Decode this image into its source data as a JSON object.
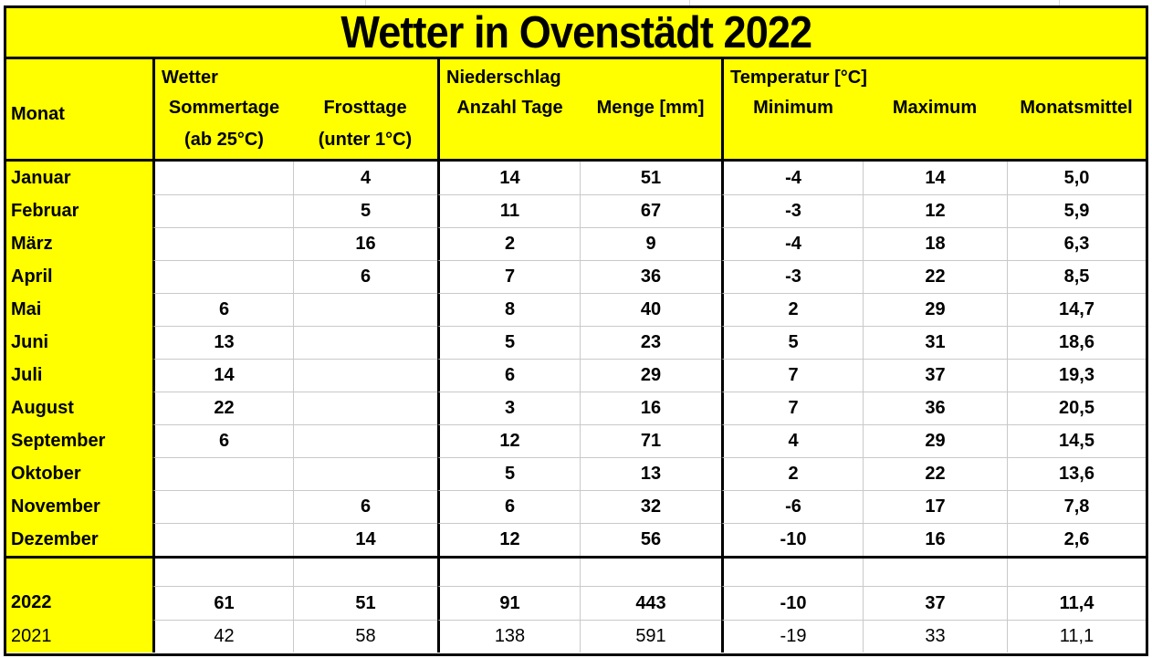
{
  "title": "Wetter in Ovenstädt 2022",
  "table": {
    "monat_header": "Monat",
    "groups": [
      {
        "label": "Wetter",
        "columns": [
          {
            "label": "Sommertage",
            "sub": "(ab 25°C)"
          },
          {
            "label": "Frosttage",
            "sub": "(unter 1°C)"
          }
        ]
      },
      {
        "label": "Niederschlag",
        "columns": [
          {
            "label": "Anzahl Tage",
            "sub": ""
          },
          {
            "label": "Menge [mm]",
            "sub": ""
          }
        ]
      },
      {
        "label": "Temperatur [°C]",
        "columns": [
          {
            "label": "Minimum",
            "sub": ""
          },
          {
            "label": "Maximum",
            "sub": ""
          },
          {
            "label": "Monatsmittel",
            "sub": ""
          }
        ]
      }
    ],
    "rows": [
      {
        "monat": "Januar",
        "sommertage": "",
        "frosttage": "4",
        "anzahl_tage": "14",
        "menge": "51",
        "minimum": "-4",
        "maximum": "14",
        "monatsmittel": "5,0"
      },
      {
        "monat": "Februar",
        "sommertage": "",
        "frosttage": "5",
        "anzahl_tage": "11",
        "menge": "67",
        "minimum": "-3",
        "maximum": "12",
        "monatsmittel": "5,9"
      },
      {
        "monat": "März",
        "sommertage": "",
        "frosttage": "16",
        "anzahl_tage": "2",
        "menge": "9",
        "minimum": "-4",
        "maximum": "18",
        "monatsmittel": "6,3"
      },
      {
        "monat": "April",
        "sommertage": "",
        "frosttage": "6",
        "anzahl_tage": "7",
        "menge": "36",
        "minimum": "-3",
        "maximum": "22",
        "monatsmittel": "8,5"
      },
      {
        "monat": "Mai",
        "sommertage": "6",
        "frosttage": "",
        "anzahl_tage": "8",
        "menge": "40",
        "minimum": "2",
        "maximum": "29",
        "monatsmittel": "14,7"
      },
      {
        "monat": "Juni",
        "sommertage": "13",
        "frosttage": "",
        "anzahl_tage": "5",
        "menge": "23",
        "minimum": "5",
        "maximum": "31",
        "monatsmittel": "18,6"
      },
      {
        "monat": "Juli",
        "sommertage": "14",
        "frosttage": "",
        "anzahl_tage": "6",
        "menge": "29",
        "minimum": "7",
        "maximum": "37",
        "monatsmittel": "19,3"
      },
      {
        "monat": "August",
        "sommertage": "22",
        "frosttage": "",
        "anzahl_tage": "3",
        "menge": "16",
        "minimum": "7",
        "maximum": "36",
        "monatsmittel": "20,5"
      },
      {
        "monat": "September",
        "sommertage": "6",
        "frosttage": "",
        "anzahl_tage": "12",
        "menge": "71",
        "minimum": "4",
        "maximum": "29",
        "monatsmittel": "14,5"
      },
      {
        "monat": "Oktober",
        "sommertage": "",
        "frosttage": "",
        "anzahl_tage": "5",
        "menge": "13",
        "minimum": "2",
        "maximum": "22",
        "monatsmittel": "13,6"
      },
      {
        "monat": "November",
        "sommertage": "",
        "frosttage": "6",
        "anzahl_tage": "6",
        "menge": "32",
        "minimum": "-6",
        "maximum": "17",
        "monatsmittel": "7,8"
      },
      {
        "monat": "Dezember",
        "sommertage": "",
        "frosttage": "14",
        "anzahl_tage": "12",
        "menge": "56",
        "minimum": "-10",
        "maximum": "16",
        "monatsmittel": "2,6"
      }
    ],
    "summary_rows": [
      {
        "monat": "2022",
        "sommertage": "61",
        "frosttage": "51",
        "anzahl_tage": "91",
        "menge": "443",
        "minimum": "-10",
        "maximum": "37",
        "monatsmittel": "11,4"
      },
      {
        "monat": "2021",
        "sommertage": "42",
        "frosttage": "58",
        "anzahl_tage": "138",
        "menge": "591",
        "minimum": "-19",
        "maximum": "33",
        "monatsmittel": "11,1"
      }
    ]
  },
  "colors": {
    "highlight_yellow": "#ffff00",
    "border_black": "#000000",
    "gridline_gray": "#c9c9c9"
  }
}
